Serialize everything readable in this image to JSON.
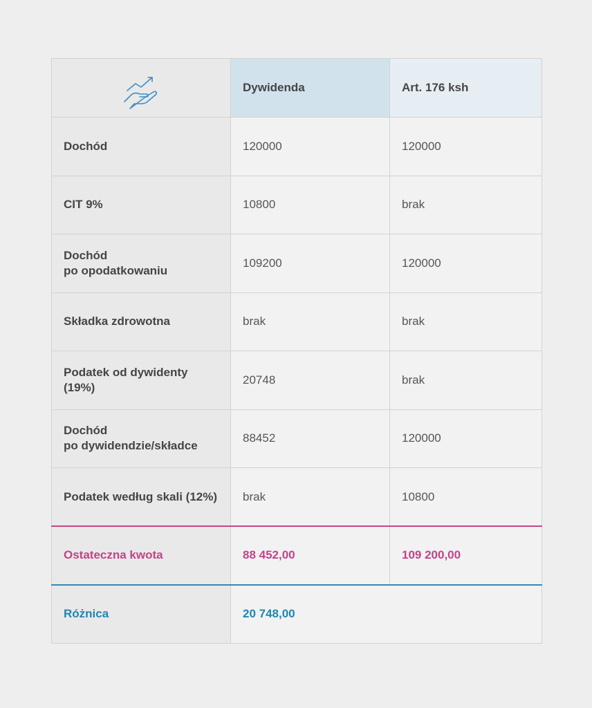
{
  "table": {
    "header": [
      "Dywidenda",
      "Art. 176 ksh"
    ],
    "rows": [
      [
        "Dochód",
        "120000",
        "120000"
      ],
      [
        "CIT 9%",
        "10800",
        "brak"
      ],
      [
        "Dochód\npo opodatkowaniu",
        "109200",
        "120000"
      ],
      [
        "Składka zdrowotna",
        "brak",
        "brak"
      ],
      [
        "Podatek od dywidenty (19%)",
        "20748",
        "brak"
      ],
      [
        "Dochód\npo dywidendzie/składce",
        "88452",
        "120000"
      ],
      [
        "Podatek według skali (12%)",
        "brak",
        "10800"
      ]
    ],
    "total": {
      "label": "Ostateczna kwota",
      "values": [
        "88 452,00",
        "109 200,00"
      ]
    },
    "difference": {
      "label": "Różnica",
      "value": "20 748,00"
    }
  }
}
